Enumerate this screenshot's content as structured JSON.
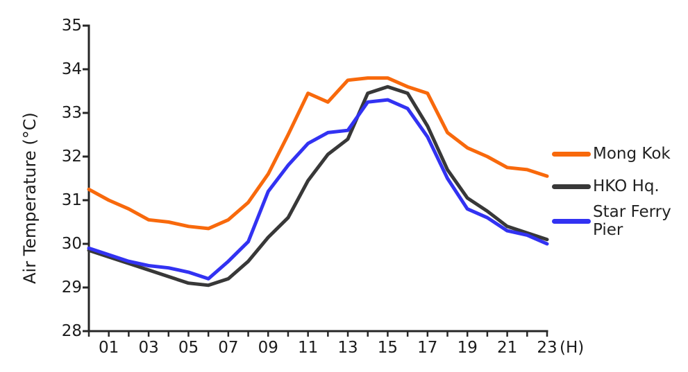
{
  "chart_data": {
    "type": "line",
    "title": "",
    "ylabel": "Air Temperature (°C)",
    "x_unit": "(H)",
    "x": [
      0,
      1,
      2,
      3,
      4,
      5,
      6,
      7,
      8,
      9,
      10,
      11,
      12,
      13,
      14,
      15,
      16,
      17,
      18,
      19,
      20,
      21,
      22,
      23
    ],
    "xtick_hours": [
      1,
      3,
      5,
      7,
      9,
      11,
      13,
      15,
      17,
      19,
      21,
      23
    ],
    "xtick_labels": [
      "01",
      "03",
      "05",
      "07",
      "09",
      "11",
      "13",
      "15",
      "17",
      "19",
      "21",
      "23"
    ],
    "yticks": [
      35,
      34,
      33,
      32,
      31,
      30,
      29,
      28
    ],
    "ytick_labels": [
      "35",
      "34",
      "33",
      "32",
      "31",
      "30",
      "29",
      "28"
    ],
    "xlim": [
      0,
      23
    ],
    "ylim": [
      28,
      35
    ],
    "grid": false,
    "legend_position": "right",
    "series": [
      {
        "name": "Mong Kok",
        "color": "#F8690C",
        "values": [
          31.25,
          31.0,
          30.8,
          30.55,
          30.5,
          30.4,
          30.35,
          30.55,
          30.95,
          31.6,
          32.5,
          33.45,
          33.25,
          33.75,
          33.8,
          33.8,
          33.6,
          33.45,
          32.55,
          32.2,
          32.0,
          31.75,
          31.7,
          31.55
        ]
      },
      {
        "name": "HKO Hq.",
        "color": "#383838",
        "values": [
          29.85,
          29.7,
          29.55,
          29.4,
          29.25,
          29.1,
          29.05,
          29.2,
          29.6,
          30.15,
          30.6,
          31.45,
          32.05,
          32.4,
          33.45,
          33.6,
          33.45,
          32.7,
          31.7,
          31.05,
          30.75,
          30.4,
          30.25,
          30.1
        ]
      },
      {
        "name": "Star Ferry Pier",
        "color": "#3232F2",
        "values": [
          29.9,
          29.75,
          29.6,
          29.5,
          29.45,
          29.35,
          29.2,
          29.6,
          30.05,
          31.2,
          31.8,
          32.3,
          32.55,
          32.6,
          33.25,
          33.3,
          33.1,
          32.45,
          31.5,
          30.8,
          30.6,
          30.3,
          30.2,
          30.0
        ]
      }
    ]
  }
}
